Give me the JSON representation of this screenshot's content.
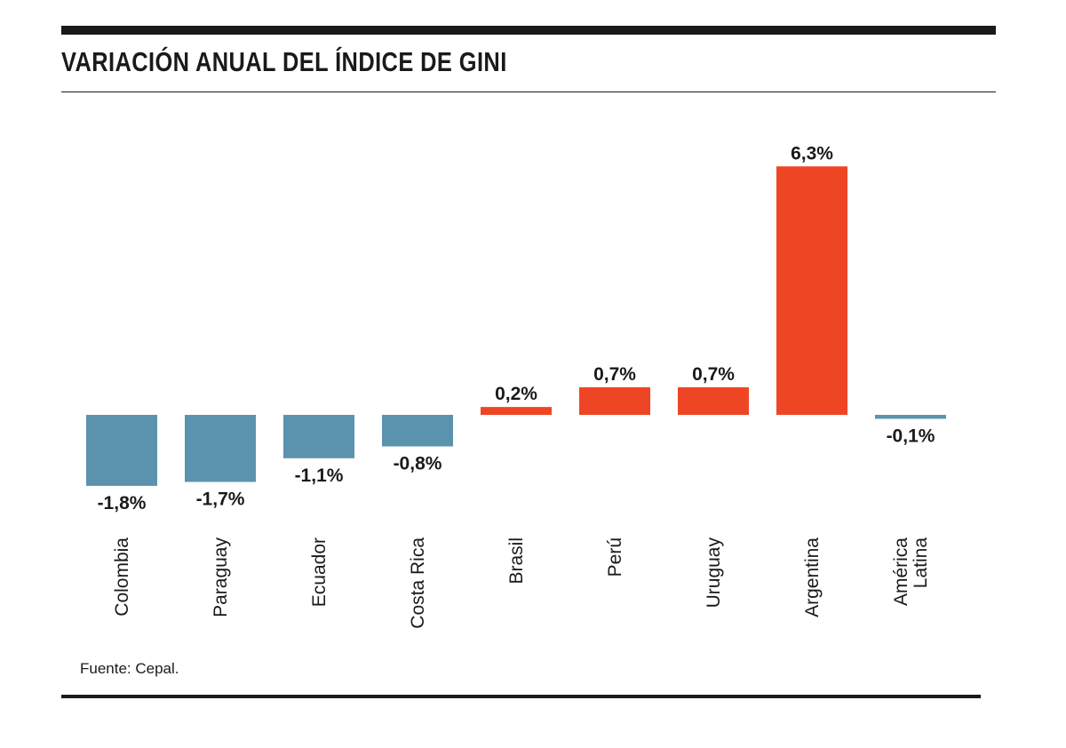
{
  "title": "VARIACIÓN ANUAL DEL ÍNDICE DE GINI",
  "source": "Fuente: Cepal.",
  "colors": {
    "negative": "#5b93ae",
    "positive": "#ee4624",
    "text": "#1a1a1a"
  },
  "chart_data": {
    "type": "bar",
    "title": "VARIACIÓN ANUAL DEL ÍNDICE DE GINI",
    "xlabel": "",
    "ylabel": "",
    "grid": false,
    "legend": "none",
    "categories": [
      "Colombia",
      "Paraguay",
      "Ecuador",
      "Costa Rica",
      "Brasil",
      "Perú",
      "Uruguay",
      "Argentina",
      "América Latina"
    ],
    "category_lines": [
      [
        "Colombia"
      ],
      [
        "Paraguay"
      ],
      [
        "Ecuador"
      ],
      [
        "Costa Rica"
      ],
      [
        "Brasil"
      ],
      [
        "Perú"
      ],
      [
        "Uruguay"
      ],
      [
        "Argentina"
      ],
      [
        "América",
        "Latina"
      ]
    ],
    "values": [
      -1.8,
      -1.7,
      -1.1,
      -0.8,
      0.2,
      0.7,
      0.7,
      6.3,
      -0.1
    ],
    "value_labels": [
      "-1,8%",
      "-1,7%",
      "-1,1%",
      "-0,8%",
      "0,2%",
      "0,7%",
      "0,7%",
      "6,3%",
      "-0,1%"
    ],
    "unit": "%"
  }
}
